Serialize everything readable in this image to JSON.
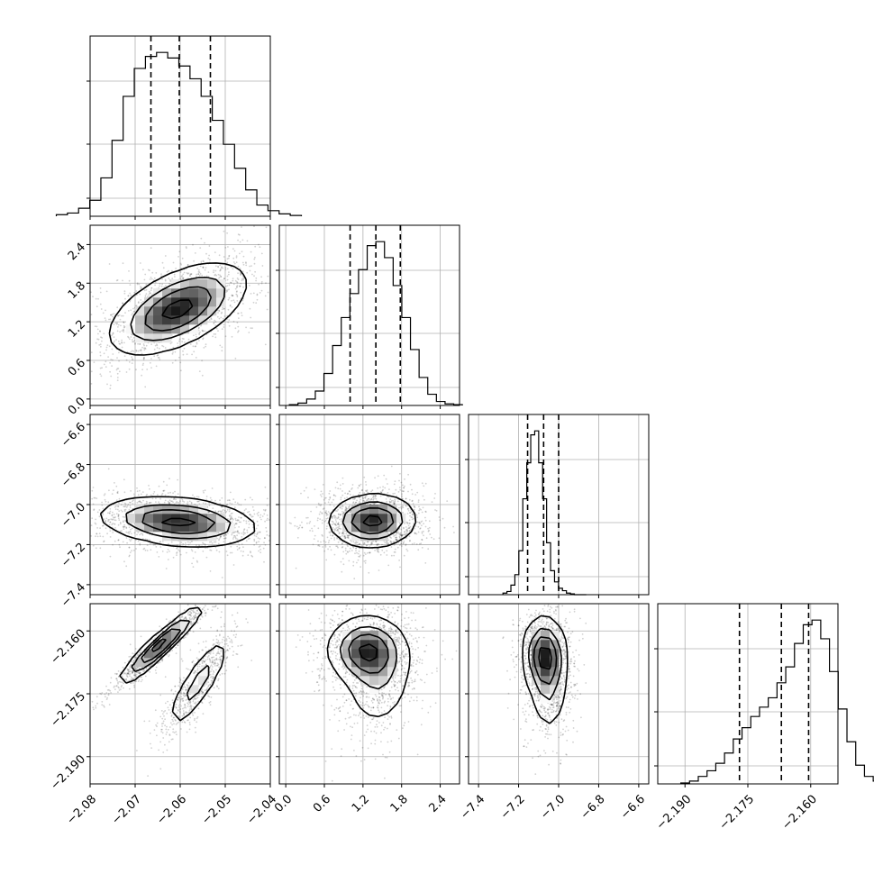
{
  "chart_data": {
    "type": "corner",
    "parameters": [
      {
        "range": [
          -2.08,
          -2.04
        ],
        "ticks": [
          -2.08,
          -2.07,
          -2.06,
          -2.05,
          -2.04
        ],
        "tick_labels": [
          "−2.08",
          "−2.07",
          "−2.06",
          "−2.05",
          "−2.04"
        ],
        "mean": -2.0603,
        "sigma": 0.0085,
        "quantiles": [
          -2.0665,
          -2.0602,
          -2.0533
        ],
        "hist_counts": [
          2,
          4,
          10,
          20,
          48,
          95,
          150,
          185,
          200,
          205,
          198,
          188,
          172,
          150,
          120,
          90,
          60,
          33,
          14,
          7,
          3,
          1
        ]
      },
      {
        "range": [
          -0.1,
          2.7
        ],
        "ticks": [
          0.0,
          0.6,
          1.2,
          1.8,
          2.4
        ],
        "tick_labels": [
          "0.0",
          "0.6",
          "1.2",
          "1.8",
          "2.4"
        ],
        "mean": 1.4,
        "sigma": 0.42,
        "quantiles": [
          1.0,
          1.4,
          1.78
        ],
        "hist_counts": [
          1,
          3,
          8,
          18,
          40,
          75,
          110,
          140,
          170,
          200,
          205,
          185,
          150,
          110,
          70,
          35,
          14,
          5,
          2,
          1
        ]
      },
      {
        "range": [
          -7.45,
          -6.55
        ],
        "ticks": [
          -7.4,
          -7.2,
          -7.0,
          -6.8,
          -6.6
        ],
        "tick_labels": [
          "−7.4",
          "−7.2",
          "−7.0",
          "−6.8",
          "−6.6"
        ],
        "mean": -7.07,
        "sigma": 0.065,
        "quantiles": [
          -7.155,
          -7.075,
          -7.0
        ],
        "hist_counts": [
          2,
          4,
          12,
          25,
          55,
          120,
          165,
          200,
          205,
          165,
          120,
          65,
          30,
          16,
          8,
          5,
          2,
          1,
          0,
          0,
          0
        ]
      },
      {
        "range": [
          -2.1965,
          -2.1535
        ],
        "ticks": [
          -2.19,
          -2.175,
          -2.16
        ],
        "tick_labels": [
          "−2.190",
          "−2.175",
          "−2.160"
        ],
        "mean": -2.167,
        "sigma": 0.0075,
        "quantiles": [
          -2.177,
          -2.167,
          -2.1605
        ],
        "hist_counts": [
          1,
          3,
          8,
          14,
          22,
          33,
          48,
          60,
          72,
          82,
          92,
          108,
          125,
          150,
          170,
          175,
          155,
          120,
          80,
          45,
          20,
          8,
          3
        ]
      }
    ],
    "pairs": [
      {
        "row": 1,
        "col": 0,
        "components": [
          {
            "mx": -2.0605,
            "my": 1.4,
            "sx": 0.0075,
            "sy": 0.35,
            "rho": 0.55,
            "w": 1
          }
        ]
      },
      {
        "row": 2,
        "col": 0,
        "components": [
          {
            "mx": -2.0605,
            "my": -7.085,
            "sx": 0.0085,
            "sy": 0.06,
            "rho": -0.25,
            "w": 1
          }
        ]
      },
      {
        "row": 2,
        "col": 1,
        "components": [
          {
            "mx": 1.35,
            "my": -7.08,
            "sx": 0.33,
            "sy": 0.065,
            "rho": 0.05,
            "w": 1
          }
        ]
      },
      {
        "row": 3,
        "col": 0,
        "components": [
          {
            "mx": -2.0645,
            "my": -2.1635,
            "sx": 0.0045,
            "sy": 0.0045,
            "rho": 0.94,
            "w": 0.6
          },
          {
            "mx": -2.056,
            "my": -2.1725,
            "sx": 0.0035,
            "sy": 0.0055,
            "rho": 0.85,
            "w": 0.4
          }
        ]
      },
      {
        "row": 3,
        "col": 1,
        "components": [
          {
            "mx": 1.25,
            "my": -2.1645,
            "sx": 0.3,
            "sy": 0.004,
            "rho": 0.0,
            "w": 0.65
          },
          {
            "mx": 1.45,
            "my": -2.172,
            "sx": 0.28,
            "sy": 0.006,
            "rho": 0.1,
            "w": 0.35
          }
        ]
      },
      {
        "row": 3,
        "col": 2,
        "components": [
          {
            "mx": -7.07,
            "my": -2.1655,
            "sx": 0.055,
            "sy": 0.0045,
            "rho": -0.05,
            "w": 0.65
          },
          {
            "mx": -7.055,
            "my": -2.173,
            "sx": 0.05,
            "sy": 0.006,
            "rho": -0.1,
            "w": 0.35
          }
        ]
      }
    ],
    "grid": true,
    "legend": "none"
  }
}
